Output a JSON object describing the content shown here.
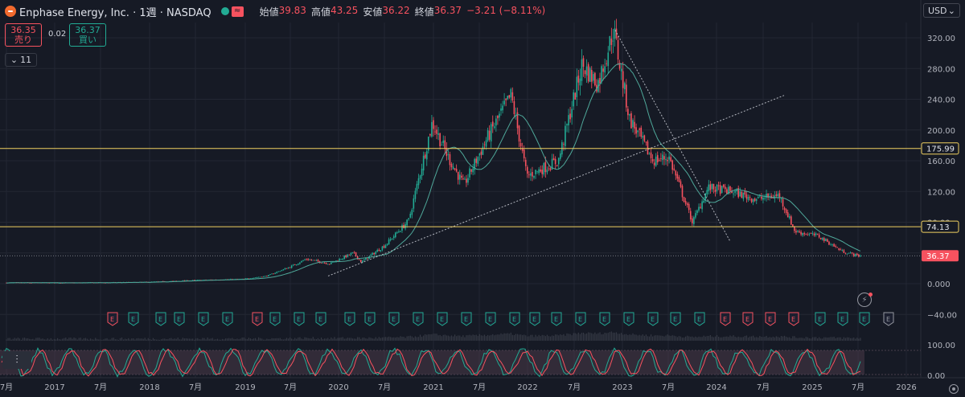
{
  "header": {
    "title": "Enphase Energy, Inc. · 1週 · NASDAQ",
    "open_label": "始値",
    "open": "39.83",
    "high_label": "高値",
    "high": "43.25",
    "low_label": "安値",
    "low": "36.22",
    "close_label": "終値",
    "close": "36.37",
    "change": "−3.21 (−8.11%)",
    "wave_icon": "≈"
  },
  "trade": {
    "sell_price": "36.35",
    "sell_label": "売り",
    "spread": "0.02",
    "buy_price": "36.37",
    "buy_label": "買い"
  },
  "indicators_count": "11",
  "currency": "USD",
  "price_axis": [
    "320.00",
    "280.00",
    "240.00",
    "200.00",
    "160.00",
    "120.00",
    "80.00",
    "40.00",
    "0.000",
    "−40.00"
  ],
  "osc_axis": [
    "100.00",
    "0.00"
  ],
  "time_axis": [
    {
      "label": "7月",
      "x": 8
    },
    {
      "label": "2017",
      "x": 68
    },
    {
      "label": "7月",
      "x": 125
    },
    {
      "label": "2018",
      "x": 186
    },
    {
      "label": "7月",
      "x": 243
    },
    {
      "label": "2019",
      "x": 305
    },
    {
      "label": "7月",
      "x": 361
    },
    {
      "label": "2020",
      "x": 421
    },
    {
      "label": "7月",
      "x": 478
    },
    {
      "label": "2021",
      "x": 539
    },
    {
      "label": "7月",
      "x": 596
    },
    {
      "label": "2022",
      "x": 656
    },
    {
      "label": "7月",
      "x": 714
    },
    {
      "label": "2023",
      "x": 774
    },
    {
      "label": "7月",
      "x": 831
    },
    {
      "label": "2024",
      "x": 891
    },
    {
      "label": "7月",
      "x": 949
    },
    {
      "label": "2025",
      "x": 1010
    },
    {
      "label": "7月",
      "x": 1067
    },
    {
      "label": "2026",
      "x": 1127
    }
  ],
  "levels": [
    {
      "price": 175.99,
      "label": "175.99",
      "color": "#f0d060"
    },
    {
      "price": 74.13,
      "label": "74.13",
      "color": "#f0d060"
    }
  ],
  "current_price": {
    "price": 36.37,
    "label": "36.37",
    "color": "#f7525f"
  },
  "earnings_markers": [
    {
      "x": 140,
      "kind": "miss"
    },
    {
      "x": 166,
      "kind": "beat"
    },
    {
      "x": 200,
      "kind": "beat"
    },
    {
      "x": 223,
      "kind": "beat"
    },
    {
      "x": 253,
      "kind": "beat"
    },
    {
      "x": 283,
      "kind": "beat"
    },
    {
      "x": 320,
      "kind": "miss"
    },
    {
      "x": 342,
      "kind": "beat"
    },
    {
      "x": 372,
      "kind": "beat"
    },
    {
      "x": 399,
      "kind": "beat"
    },
    {
      "x": 435,
      "kind": "beat"
    },
    {
      "x": 460,
      "kind": "beat"
    },
    {
      "x": 490,
      "kind": "beat"
    },
    {
      "x": 520,
      "kind": "beat"
    },
    {
      "x": 550,
      "kind": "beat"
    },
    {
      "x": 580,
      "kind": "beat"
    },
    {
      "x": 610,
      "kind": "beat"
    },
    {
      "x": 640,
      "kind": "beat"
    },
    {
      "x": 665,
      "kind": "beat"
    },
    {
      "x": 692,
      "kind": "beat"
    },
    {
      "x": 722,
      "kind": "beat"
    },
    {
      "x": 752,
      "kind": "beat"
    },
    {
      "x": 782,
      "kind": "beat"
    },
    {
      "x": 812,
      "kind": "beat"
    },
    {
      "x": 840,
      "kind": "beat"
    },
    {
      "x": 870,
      "kind": "beat"
    },
    {
      "x": 902,
      "kind": "miss"
    },
    {
      "x": 930,
      "kind": "miss"
    },
    {
      "x": 958,
      "kind": "miss"
    },
    {
      "x": 987,
      "kind": "miss"
    },
    {
      "x": 1020,
      "kind": "beat"
    },
    {
      "x": 1048,
      "kind": "beat"
    },
    {
      "x": 1075,
      "kind": "beat"
    },
    {
      "x": 1105,
      "kind": "future"
    }
  ],
  "earnings_letter": "E",
  "colors": {
    "up": "#22ab94",
    "down": "#f7525f",
    "ma": "#4fa89a",
    "trend": "#b2b5be",
    "bg": "#161a25",
    "grid": "#232733"
  },
  "chart_data": {
    "type": "candlestick",
    "x_range": [
      "2016-07",
      "2026-01"
    ],
    "y_range": [
      -60,
      340
    ],
    "weekly_close_path": [
      {
        "x": "2016-07",
        "y": 1.2
      },
      {
        "x": "2017-01",
        "y": 1.1
      },
      {
        "x": "2017-07",
        "y": 1.3
      },
      {
        "x": "2018-01",
        "y": 2.0
      },
      {
        "x": "2018-07",
        "y": 4.5
      },
      {
        "x": "2019-01",
        "y": 6
      },
      {
        "x": "2019-04",
        "y": 10
      },
      {
        "x": "2019-07",
        "y": 22
      },
      {
        "x": "2019-09",
        "y": 32
      },
      {
        "x": "2019-12",
        "y": 26
      },
      {
        "x": "2020-03",
        "y": 40
      },
      {
        "x": "2020-04",
        "y": 28
      },
      {
        "x": "2020-07",
        "y": 50
      },
      {
        "x": "2020-10",
        "y": 82
      },
      {
        "x": "2021-01",
        "y": 210
      },
      {
        "x": "2021-03",
        "y": 165
      },
      {
        "x": "2021-05",
        "y": 128
      },
      {
        "x": "2021-08",
        "y": 190
      },
      {
        "x": "2021-11",
        "y": 245
      },
      {
        "x": "2022-01",
        "y": 140
      },
      {
        "x": "2022-05",
        "y": 160
      },
      {
        "x": "2022-08",
        "y": 285
      },
      {
        "x": "2022-10",
        "y": 260
      },
      {
        "x": "2022-12",
        "y": 330
      },
      {
        "x": "2023-02",
        "y": 215
      },
      {
        "x": "2023-05",
        "y": 160
      },
      {
        "x": "2023-07",
        "y": 165
      },
      {
        "x": "2023-10",
        "y": 80
      },
      {
        "x": "2023-12",
        "y": 125
      },
      {
        "x": "2024-03",
        "y": 120
      },
      {
        "x": "2024-06",
        "y": 110
      },
      {
        "x": "2024-09",
        "y": 115
      },
      {
        "x": "2024-11",
        "y": 68
      },
      {
        "x": "2025-02",
        "y": 62
      },
      {
        "x": "2025-05",
        "y": 42
      },
      {
        "x": "2025-07",
        "y": 36.37
      }
    ],
    "levels": [
      175.99,
      74.13
    ],
    "last_price": 36.37
  }
}
